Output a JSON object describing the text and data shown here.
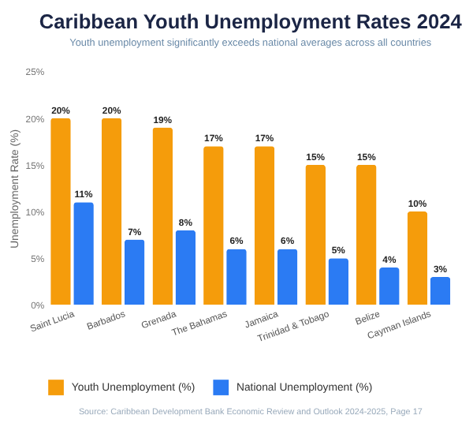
{
  "chart_data": {
    "type": "bar",
    "title": "Caribbean Youth Unemployment Rates 2024",
    "subtitle": "Youth unemployment significantly exceeds national averages across all countries",
    "ylabel": "Unemployment Rate (%)",
    "categories": [
      "Saint Lucia",
      "Barbados",
      "Grenada",
      "The Bahamas",
      "Jamaica",
      "Trinidad & Tobago",
      "Belize",
      "Cayman Islands"
    ],
    "series": [
      {
        "name": "Youth Unemployment (%)",
        "color": "#f59c0b",
        "values": [
          20,
          20,
          19,
          17,
          17,
          15,
          15,
          10
        ],
        "value_labels": [
          "20%",
          "20%",
          "19%",
          "17%",
          "17%",
          "15%",
          "15%",
          "10%"
        ]
      },
      {
        "name": "National Unemployment (%)",
        "color": "#2b7bf3",
        "values": [
          11,
          7,
          8,
          6,
          6,
          5,
          4,
          3
        ],
        "value_labels": [
          "11%",
          "7%",
          "8%",
          "6%",
          "6%",
          "5%",
          "4%",
          "3%"
        ]
      }
    ],
    "ylim": [
      0,
      25
    ],
    "yticks": [
      {
        "value": 0,
        "label": "0%"
      },
      {
        "value": 5,
        "label": "5%"
      },
      {
        "value": 10,
        "label": "10%"
      },
      {
        "value": 15,
        "label": "15%"
      },
      {
        "value": 20,
        "label": "20%"
      },
      {
        "value": 25,
        "label": "25%"
      }
    ],
    "grid": false,
    "legend": "bottom",
    "annotations": [
      "Source: Caribbean Development Bank Economic Review and Outlook 2024-2025, Page 17"
    ]
  }
}
